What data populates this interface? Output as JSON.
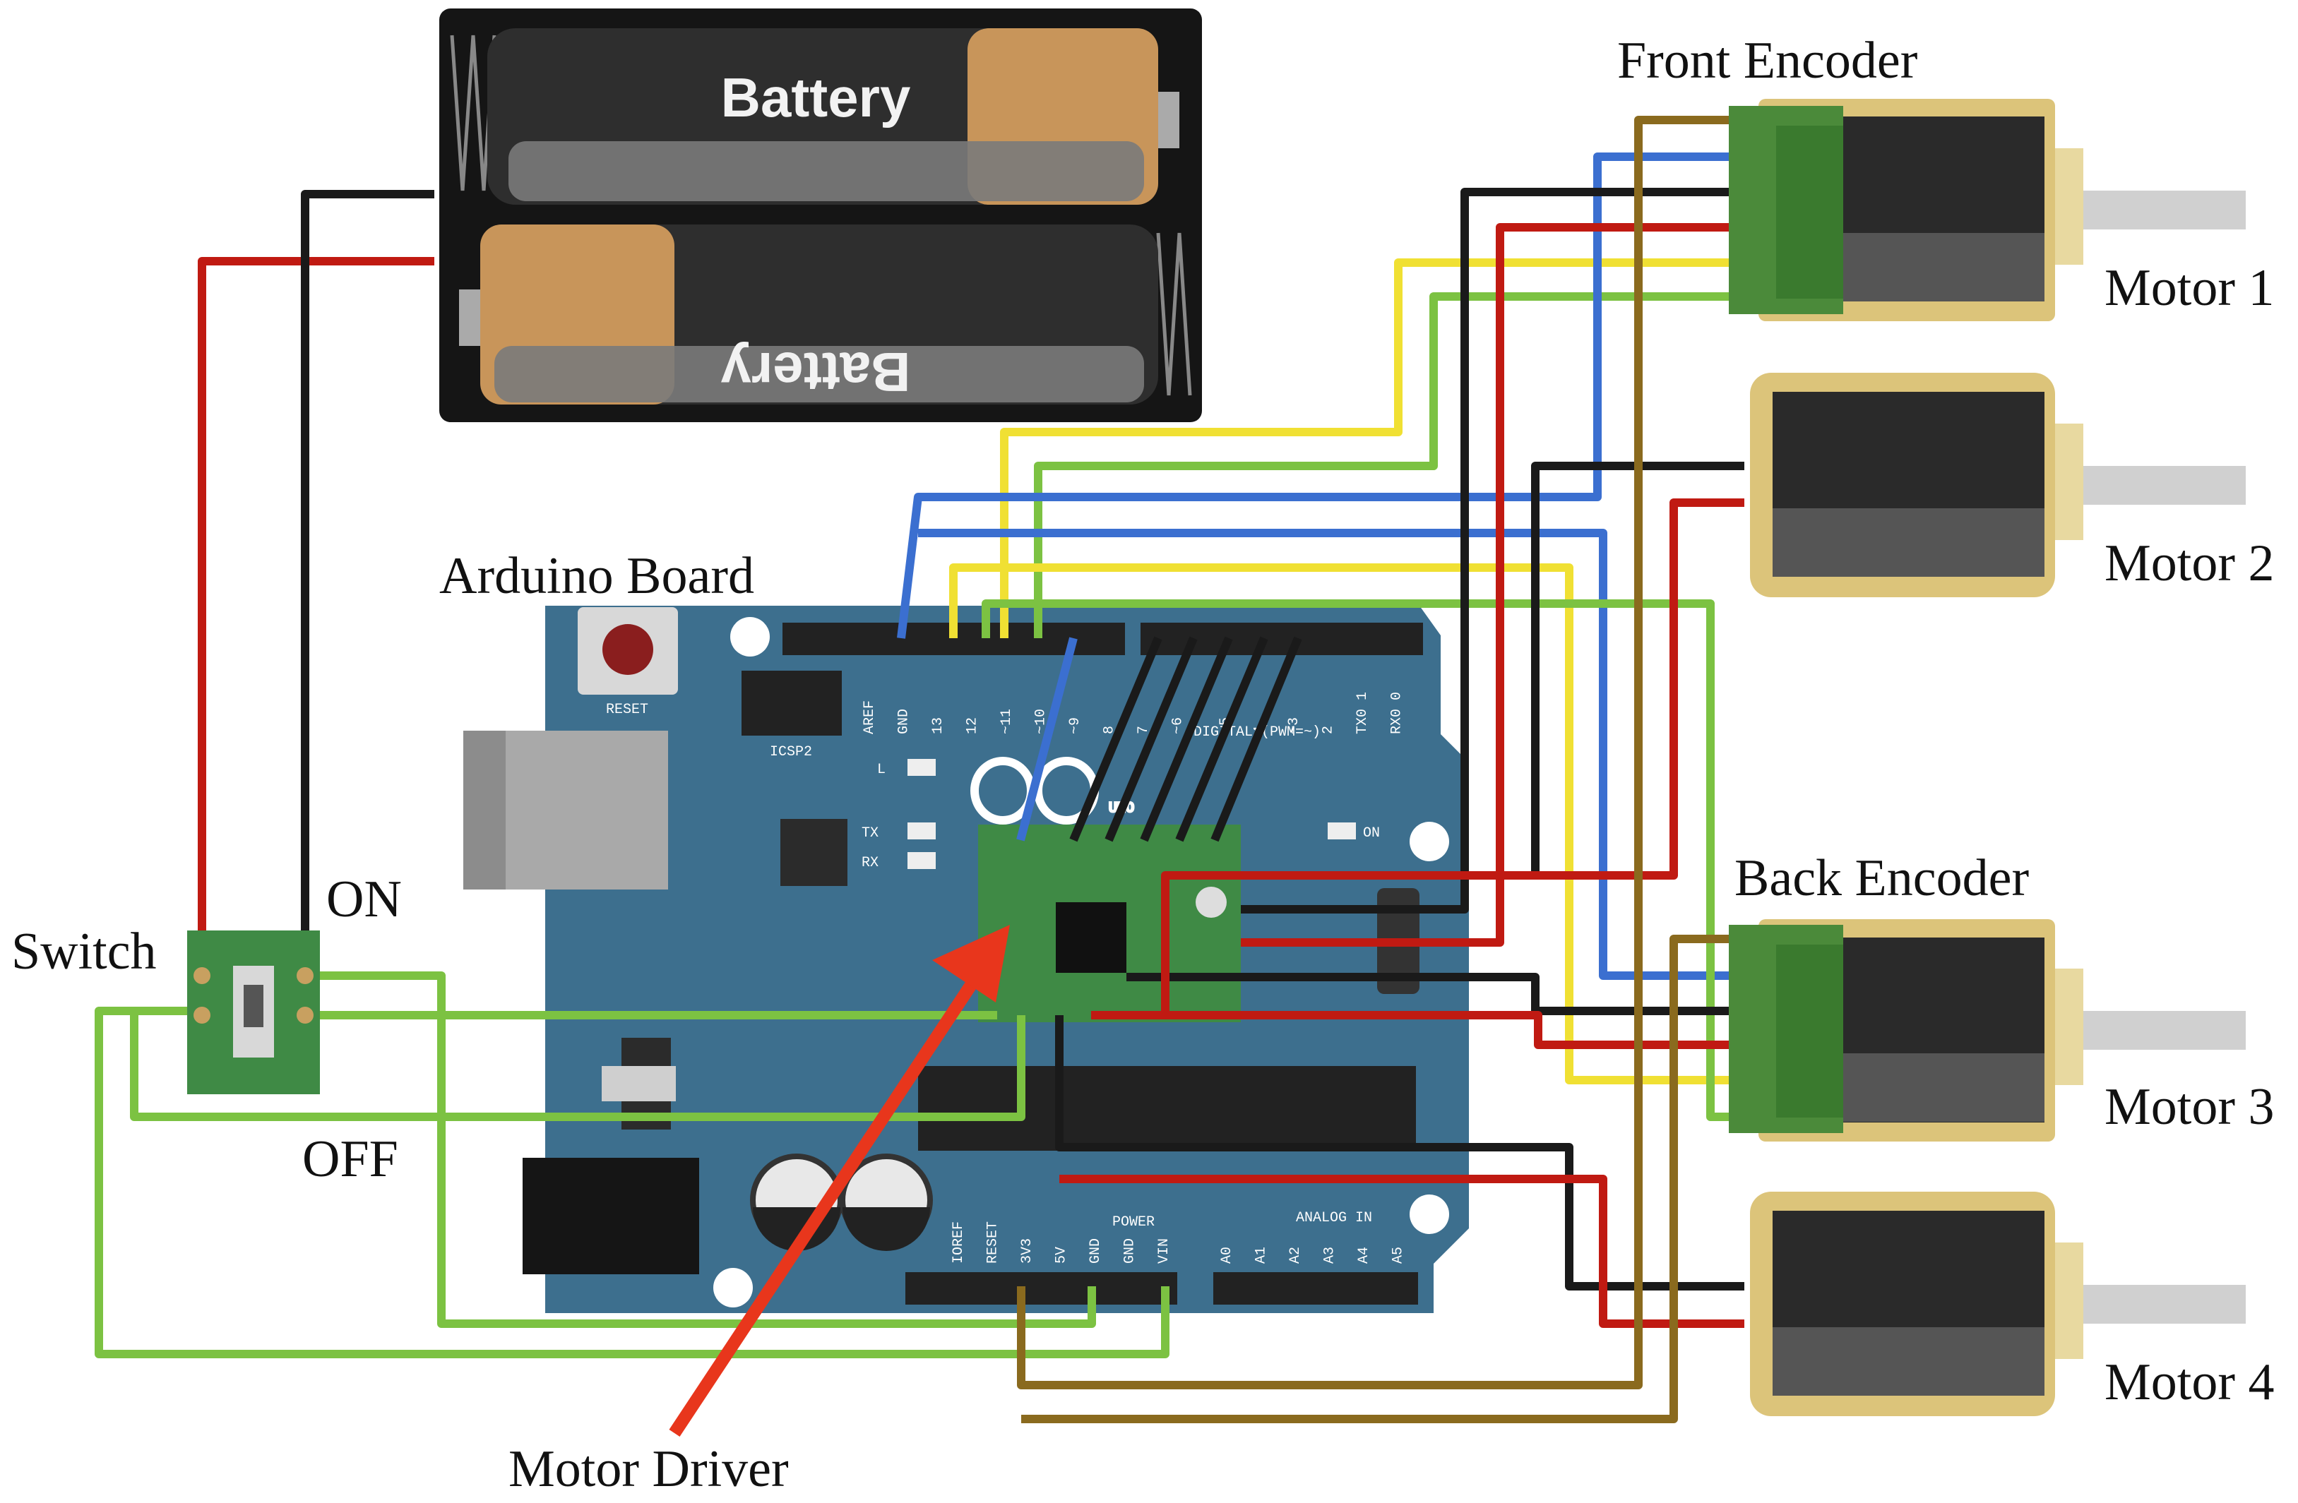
{
  "labels": {
    "front_encoder": "Front Encoder",
    "back_encoder": "Back Encoder",
    "arduino_board": "Arduino Board",
    "switch": "Switch",
    "on": "ON",
    "off": "OFF",
    "motor_driver": "Motor Driver",
    "motor1": "Motor 1",
    "motor2": "Motor 2",
    "motor3": "Motor 3",
    "motor4": "Motor 4"
  },
  "battery": {
    "top_label": "Battery",
    "bottom_label": "Battery"
  },
  "arduino": {
    "reset": "RESET",
    "icsp2": "ICSP2",
    "led_l": "L",
    "led_tx": "TX",
    "led_rx": "RX",
    "led_on": "ON",
    "logo": "UNO",
    "digital_label": "DIGITAL (PWM=~)",
    "power_label": "POWER",
    "analog_label": "ANALOG IN",
    "digital_pins": [
      "AREF",
      "GND",
      "13",
      "12",
      "~11",
      "~10",
      "~9",
      "8",
      "7",
      "~6",
      "~5",
      "4",
      "~3",
      "2",
      "TX0 1",
      "RX0 0"
    ],
    "power_pins": [
      "IOREF",
      "RESET",
      "3V3",
      "5V",
      "GND",
      "GND",
      "VIN"
    ],
    "analog_pins": [
      "A0",
      "A1",
      "A2",
      "A3",
      "A4",
      "A5"
    ]
  },
  "colors": {
    "board": "#3d6f8e",
    "wire_red": "#c01a12",
    "wire_black": "#1a1a1a",
    "wire_green": "#7cc242",
    "wire_yellow": "#f0e033",
    "wire_blue": "#3b6fd0",
    "wire_brown": "#8a6a1e",
    "arrow": "#e8361c",
    "encoder": "#4b8a3a",
    "motor_case": "#dcc47a"
  }
}
